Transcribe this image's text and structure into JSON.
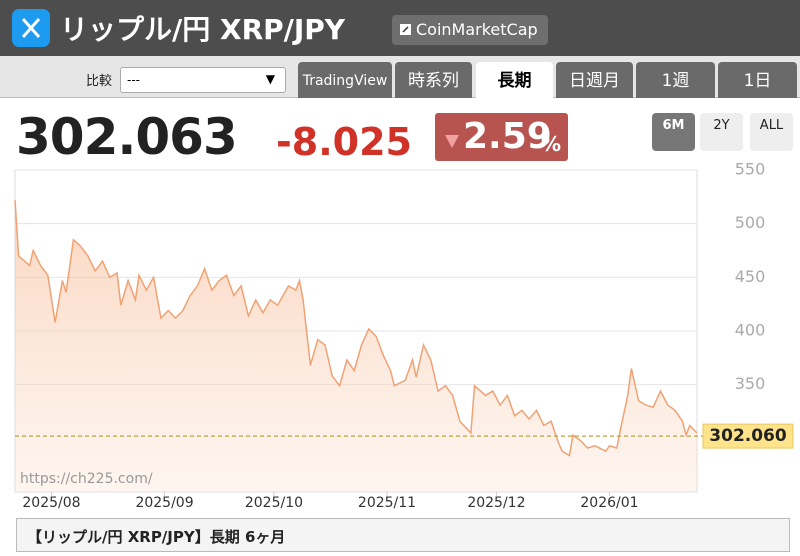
{
  "header": {
    "title": "リップル/円 XRP/JPY",
    "button": "CoinMarketCap"
  },
  "compare": {
    "label": "比較",
    "select": "---"
  },
  "tabs": [
    "TradingView",
    "時系列",
    "長期",
    "日週月",
    "1週",
    "1日"
  ],
  "price": {
    "value": "302.063",
    "change": "-8.025",
    "change_pct": "2.59",
    "pct_unit": "%"
  },
  "range_buttons": [
    "6M",
    "2Y",
    "ALL"
  ],
  "footer": "【リップル/円 XRP/JPY】長期 6ヶ月",
  "chart_data": {
    "type": "line",
    "color": "#f0a274",
    "grid": true,
    "watermark": "https://ch225.com/",
    "x": [
      -10,
      -9,
      -6,
      -5,
      -3,
      -1,
      1,
      3,
      4,
      6,
      8,
      10,
      12,
      14,
      16,
      18,
      19,
      21,
      23,
      24,
      26,
      28,
      30,
      32,
      34,
      36,
      38,
      40,
      42,
      44,
      46,
      48,
      50,
      52,
      54,
      56,
      58,
      60,
      62,
      65,
      67,
      68,
      69,
      71,
      73,
      75,
      77,
      79,
      81,
      83,
      85,
      87,
      89,
      91,
      93,
      94,
      97,
      99,
      100,
      102,
      104,
      106,
      108,
      110,
      112,
      115,
      116,
      119,
      121,
      123,
      125,
      127,
      129,
      131,
      133,
      135,
      137,
      139,
      140,
      142,
      143,
      145,
      147,
      149,
      152,
      153,
      155,
      156,
      158,
      159,
      161,
      163,
      165,
      167,
      169,
      171,
      173,
      174,
      175,
      177
    ],
    "values": [
      522,
      470,
      461,
      475,
      461,
      452,
      408,
      447,
      436,
      485,
      479,
      470,
      456,
      465,
      450,
      454,
      424,
      447,
      429,
      452,
      438,
      450,
      412,
      419,
      412,
      419,
      433,
      442,
      458,
      438,
      447,
      452,
      433,
      442,
      414,
      429,
      417,
      429,
      424,
      442,
      438,
      447,
      429,
      368,
      392,
      387,
      358,
      349,
      373,
      363,
      387,
      402,
      395,
      377,
      363,
      349,
      354,
      373,
      357,
      387,
      373,
      344,
      349,
      340,
      316,
      305,
      349,
      340,
      344,
      331,
      340,
      321,
      326,
      318,
      326,
      312,
      316,
      296,
      288,
      284,
      303,
      298,
      291,
      293,
      288,
      293,
      291,
      308,
      340,
      365,
      335,
      331,
      329,
      344,
      331,
      326,
      316,
      303,
      312,
      305
    ],
    "xlim": [
      -10,
      177
    ],
    "ylim": [
      250,
      550
    ],
    "xticks": [
      {
        "value": 0,
        "label": "2025/08"
      },
      {
        "value": 31,
        "label": "2025/09"
      },
      {
        "value": 61,
        "label": "2025/10"
      },
      {
        "value": 92,
        "label": "2025/11"
      },
      {
        "value": 122,
        "label": "2025/12"
      },
      {
        "value": 153,
        "label": "2026/01"
      }
    ],
    "yticks": [
      350,
      400,
      450,
      500,
      550
    ],
    "reference_line": {
      "value": 302.06,
      "label": "302.060"
    }
  }
}
